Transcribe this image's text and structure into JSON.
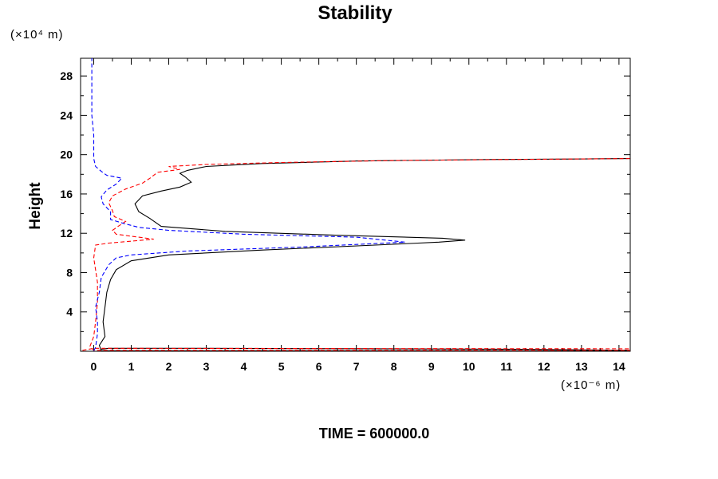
{
  "chart_data": {
    "type": "line",
    "title": "Stability",
    "xlabel": "",
    "ylabel": "Height",
    "x_unit": "(×10⁻⁶ m)",
    "y_unit": "(×10⁴ m)",
    "footer": "TIME = 600000.0",
    "xlim": [
      -0.35,
      14.3
    ],
    "ylim": [
      0,
      29.8
    ],
    "xticks": [
      0,
      1,
      2,
      3,
      4,
      5,
      6,
      7,
      8,
      9,
      10,
      11,
      12,
      13,
      14
    ],
    "yticks": [
      4,
      8,
      12,
      16,
      20,
      24,
      28
    ],
    "grid": false,
    "series": [
      {
        "color": "#000000",
        "style": "solid",
        "points": [
          [
            0.2,
            0.2
          ],
          [
            0.4,
            0.3
          ],
          [
            2.5,
            0.3
          ],
          [
            11.5,
            0.2
          ],
          [
            14.3,
            0.1
          ],
          [
            14.3,
            0.05
          ],
          [
            0.2,
            0.05
          ],
          [
            0.15,
            0.6
          ],
          [
            0.3,
            1.5
          ],
          [
            0.25,
            3
          ],
          [
            0.3,
            4.5
          ],
          [
            0.35,
            6
          ],
          [
            0.45,
            7.3
          ],
          [
            0.6,
            8.3
          ],
          [
            1.0,
            9.2
          ],
          [
            2.0,
            9.8
          ],
          [
            4.5,
            10.3
          ],
          [
            7.5,
            10.8
          ],
          [
            9.2,
            11.1
          ],
          [
            9.9,
            11.3
          ],
          [
            9.3,
            11.5
          ],
          [
            6.5,
            11.8
          ],
          [
            3.5,
            12.2
          ],
          [
            1.8,
            12.7
          ],
          [
            1.5,
            13.5
          ],
          [
            1.2,
            14.2
          ],
          [
            1.1,
            15.0
          ],
          [
            1.3,
            15.8
          ],
          [
            1.8,
            16.3
          ],
          [
            2.3,
            16.7
          ],
          [
            2.6,
            17.2
          ],
          [
            2.45,
            17.7
          ],
          [
            2.3,
            18.1
          ],
          [
            2.5,
            18.4
          ],
          [
            3.0,
            18.8
          ],
          [
            4.5,
            19.1
          ],
          [
            7.0,
            19.35
          ],
          [
            10.5,
            19.5
          ],
          [
            12.8,
            19.55
          ],
          [
            14.3,
            19.6
          ]
        ]
      },
      {
        "color": "#ff0000",
        "style": "dashed",
        "points": [
          [
            -0.3,
            0.1
          ],
          [
            0,
            0.3
          ],
          [
            14.3,
            0.25
          ],
          [
            14.3,
            0.1
          ],
          [
            0.0,
            0.1
          ],
          [
            -0.1,
            0.5
          ],
          [
            0,
            1.5
          ],
          [
            0.05,
            3
          ],
          [
            0.1,
            5
          ],
          [
            0.1,
            7
          ],
          [
            0.0,
            9.5
          ],
          [
            0.05,
            10.8
          ],
          [
            0.4,
            11.0
          ],
          [
            1.0,
            11.2
          ],
          [
            1.6,
            11.4
          ],
          [
            1.2,
            11.6
          ],
          [
            0.6,
            11.9
          ],
          [
            0.5,
            12.3
          ],
          [
            0.65,
            12.7
          ],
          [
            0.85,
            13.2
          ],
          [
            0.55,
            13.7
          ],
          [
            0.5,
            14.3
          ],
          [
            0.4,
            15.1
          ],
          [
            0.5,
            15.8
          ],
          [
            0.85,
            16.5
          ],
          [
            1.3,
            17.1
          ],
          [
            1.5,
            17.6
          ],
          [
            1.7,
            18.2
          ],
          [
            2.3,
            18.5
          ],
          [
            2.0,
            18.8
          ],
          [
            3.0,
            19.0
          ],
          [
            5.0,
            19.2
          ],
          [
            8.0,
            19.4
          ],
          [
            11.0,
            19.5
          ],
          [
            14.3,
            19.6
          ]
        ]
      },
      {
        "color": "#0000ff",
        "style": "dashed",
        "points": [
          [
            0.0,
            0.05
          ],
          [
            0.05,
            0.4
          ],
          [
            0.1,
            1.8
          ],
          [
            0.1,
            3
          ],
          [
            0.05,
            4.5
          ],
          [
            0.15,
            6
          ],
          [
            0.2,
            7.5
          ],
          [
            0.4,
            8.8
          ],
          [
            0.6,
            9.5
          ],
          [
            1.0,
            9.8
          ],
          [
            2.5,
            10.2
          ],
          [
            5.5,
            10.6
          ],
          [
            8.3,
            11.1
          ],
          [
            7.0,
            11.6
          ],
          [
            4.0,
            11.9
          ],
          [
            2.0,
            12.3
          ],
          [
            1.2,
            12.6
          ],
          [
            0.8,
            13.0
          ],
          [
            0.45,
            13.4
          ],
          [
            0.45,
            14.2
          ],
          [
            0.25,
            15.0
          ],
          [
            0.2,
            15.7
          ],
          [
            0.35,
            16.4
          ],
          [
            0.6,
            17.0
          ],
          [
            0.75,
            17.6
          ],
          [
            0.35,
            17.9
          ],
          [
            0.2,
            18.3
          ],
          [
            0.05,
            18.8
          ],
          [
            0.0,
            19.6
          ],
          [
            0.0,
            22
          ],
          [
            -0.05,
            24
          ],
          [
            -0.05,
            27
          ],
          [
            -0.05,
            29.8
          ]
        ]
      }
    ]
  }
}
